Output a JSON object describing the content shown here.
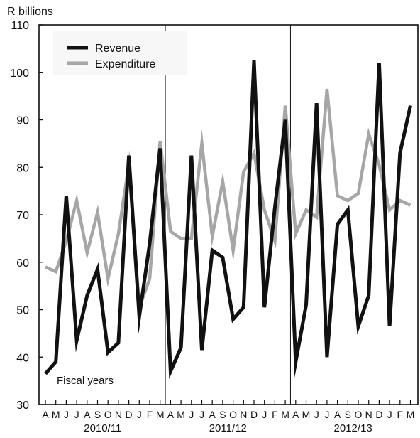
{
  "chart_data": {
    "type": "line",
    "ylabel": "R billions",
    "ylim": [
      30,
      110
    ],
    "yticks": [
      30,
      40,
      50,
      60,
      70,
      80,
      90,
      100,
      110
    ],
    "grid": false,
    "legend_position": "top-left",
    "annotation": "Fiscal years",
    "months": [
      "A",
      "M",
      "J",
      "J",
      "A",
      "S",
      "O",
      "N",
      "D",
      "J",
      "F",
      "M",
      "A",
      "M",
      "J",
      "J",
      "A",
      "S",
      "O",
      "N",
      "D",
      "J",
      "F",
      "M",
      "A",
      "M",
      "J",
      "J",
      "A",
      "S",
      "O",
      "N",
      "D",
      "J",
      "F",
      "M"
    ],
    "fiscal_years": [
      "2010/11",
      "2011/12",
      "2012/13"
    ],
    "series": [
      {
        "name": "Revenue",
        "color": "#111111",
        "values": [
          36.5,
          39,
          74,
          43.5,
          53,
          58.5,
          41,
          43,
          82.5,
          48.5,
          64,
          84,
          37,
          42,
          82.5,
          41.5,
          62.5,
          61,
          48,
          50.5,
          102.5,
          50.5,
          71.5,
          90,
          39,
          51,
          93.5,
          40,
          68,
          71,
          46.5,
          53,
          102,
          46.5,
          83,
          93
        ]
      },
      {
        "name": "Expenditure",
        "color": "#a6a6a6",
        "values": [
          59,
          58,
          64.5,
          73,
          62,
          70.5,
          56.5,
          66,
          80.5,
          50.5,
          56.5,
          85.5,
          66.5,
          65,
          65,
          85,
          65.5,
          77,
          62.5,
          79,
          83,
          71,
          64.5,
          93,
          66,
          71,
          69.5,
          96.5,
          74,
          73,
          74.5,
          87,
          80.5,
          71,
          73,
          72
        ]
      }
    ]
  }
}
